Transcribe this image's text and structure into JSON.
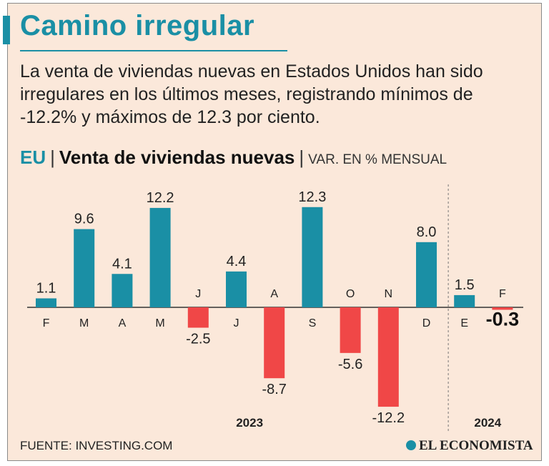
{
  "title": "Camino irregular",
  "subtitle": "La venta de viviendas nuevas en Estados Unidos han sido irregulares en los últimos meses, registrando mínimos de -12.2% y máximos de 12.3 por ciento.",
  "chart_header": {
    "region": "EU",
    "separator": "|",
    "name": "Venta de viviendas nuevas",
    "unit": "VAR. EN % MENSUAL"
  },
  "colors": {
    "accent": "#1a8fa5",
    "positive": "#1a8fa5",
    "negative": "#f04747",
    "background": "#fbe8da"
  },
  "chart_data": {
    "type": "bar",
    "title": "Venta de viviendas nuevas",
    "ylabel": "VAR. EN % MENSUAL",
    "xlabel": "",
    "categories": [
      "F",
      "M",
      "A",
      "M",
      "J",
      "J",
      "A",
      "S",
      "O",
      "N",
      "D",
      "E",
      "F"
    ],
    "values": [
      1.1,
      9.6,
      4.1,
      12.2,
      -2.5,
      4.4,
      -8.7,
      12.3,
      -5.6,
      -12.2,
      8.0,
      1.5,
      -0.3
    ],
    "value_labels": [
      "1.1",
      "9.6",
      "4.1",
      "12.2",
      "-2.5",
      "4.4",
      "-8.7",
      "12.3",
      "-5.6",
      "-12.2",
      "8.0",
      "1.5",
      "-0.3"
    ],
    "highlight_index": 12,
    "year_groups": [
      {
        "label": "2023",
        "start": 0,
        "end": 10
      },
      {
        "label": "2024",
        "start": 11,
        "end": 12
      }
    ],
    "ylim": [
      -12.2,
      12.3
    ],
    "grid": false,
    "legend": "none"
  },
  "footer": {
    "source": "FUENTE: INVESTING.COM",
    "brand": "EL ECONOMISTA",
    "brand_icon": "globe-icon"
  }
}
